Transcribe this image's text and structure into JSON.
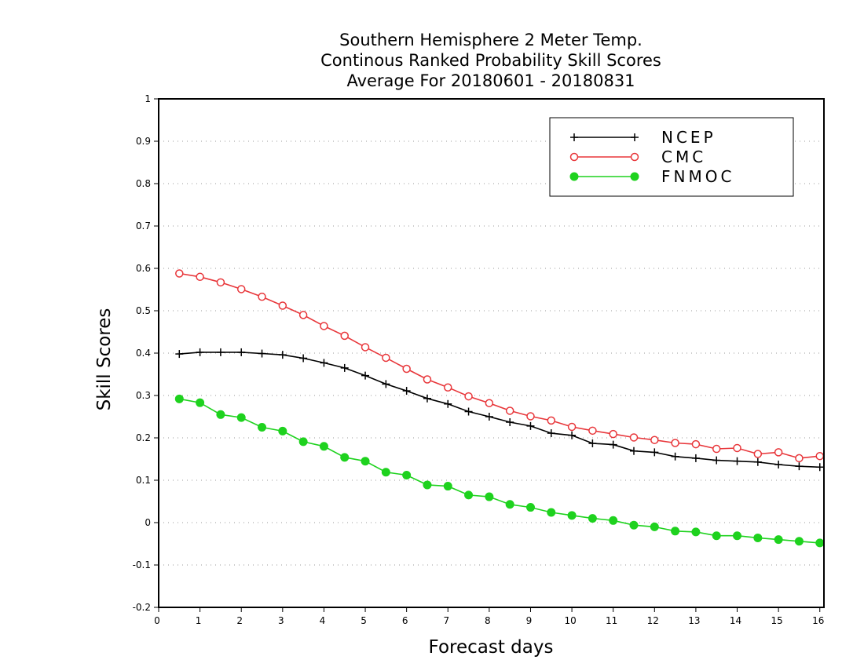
{
  "chart_data": {
    "type": "line",
    "title_lines": [
      "Southern Hemisphere 2 Meter Temp.",
      "Continous Ranked Probability Skill Scores",
      "Average For 20180601 - 20180831"
    ],
    "xlabel": "Forecast days",
    "ylabel": "Skill Scores",
    "xlim": [
      0,
      16.1
    ],
    "ylim": [
      -0.2,
      1
    ],
    "xticks": [
      "0",
      "1",
      "2",
      "3",
      "4",
      "5",
      "6",
      "7",
      "8",
      "9",
      "10",
      "11",
      "12",
      "13",
      "14",
      "15",
      "16"
    ],
    "yticks": [
      "-0.2",
      "-0.1",
      "0",
      "0.1",
      "0.2",
      "0.3",
      "0.4",
      "0.5",
      "0.6",
      "0.7",
      "0.8",
      "0.9",
      "1"
    ],
    "grid": "horizontal dotted",
    "legend_position": "top-right",
    "x": [
      0.5,
      1,
      1.5,
      2,
      2.5,
      3,
      3.5,
      4,
      4.5,
      5,
      5.5,
      6,
      6.5,
      7,
      7.5,
      8,
      8.5,
      9,
      9.5,
      10,
      10.5,
      11,
      11.5,
      12,
      12.5,
      13,
      13.5,
      14,
      14.5,
      15,
      15.5,
      16
    ],
    "series": [
      {
        "name": "NCEP",
        "color": "#000000",
        "marker": "plus",
        "values": [
          0.398,
          0.402,
          0.402,
          0.402,
          0.399,
          0.396,
          0.388,
          0.377,
          0.365,
          0.347,
          0.327,
          0.311,
          0.293,
          0.28,
          0.262,
          0.25,
          0.237,
          0.228,
          0.211,
          0.206,
          0.187,
          0.184,
          0.169,
          0.166,
          0.156,
          0.152,
          0.147,
          0.145,
          0.143,
          0.137,
          0.133,
          0.131
        ]
      },
      {
        "name": "CMC",
        "color": "#e8363a",
        "marker": "open-circle",
        "values": [
          0.588,
          0.58,
          0.567,
          0.551,
          0.533,
          0.512,
          0.49,
          0.464,
          0.441,
          0.414,
          0.389,
          0.363,
          0.338,
          0.319,
          0.298,
          0.282,
          0.264,
          0.251,
          0.241,
          0.226,
          0.217,
          0.209,
          0.201,
          0.195,
          0.188,
          0.185,
          0.174,
          0.176,
          0.162,
          0.166,
          0.152,
          0.157
        ]
      },
      {
        "name": "FNMOC",
        "color": "#1ed21e",
        "marker": "filled-circle",
        "values": [
          0.292,
          0.283,
          0.255,
          0.248,
          0.225,
          0.216,
          0.191,
          0.18,
          0.154,
          0.145,
          0.119,
          0.112,
          0.089,
          0.086,
          0.065,
          0.061,
          0.043,
          0.036,
          0.024,
          0.017,
          0.01,
          0.005,
          -0.006,
          -0.01,
          -0.02,
          -0.022,
          -0.031,
          -0.031,
          -0.036,
          -0.04,
          -0.044,
          -0.048
        ]
      }
    ]
  }
}
